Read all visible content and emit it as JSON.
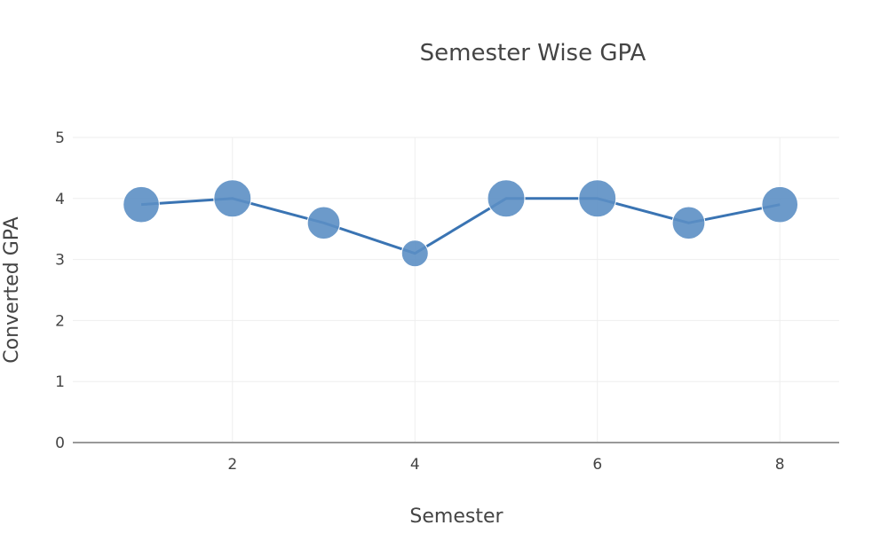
{
  "colors": {
    "series": "#3a74b3",
    "marker": "#5c8fc4",
    "grid": "#eeeeee",
    "zero_line": "#999999",
    "text": "#444444"
  },
  "chart_data": {
    "type": "scatter",
    "mode": "lines+markers",
    "title": "Semester Wise GPA",
    "xlabel": "Semester",
    "ylabel": "Converted GPA",
    "xlim": [
      0.25,
      8.65
    ],
    "ylim": [
      0,
      5
    ],
    "xticks": [
      2,
      4,
      6,
      8
    ],
    "yticks": [
      0,
      1,
      2,
      3,
      4,
      5
    ],
    "grid": true,
    "legend": "none",
    "series": [
      {
        "x": [
          1,
          2,
          3,
          4,
          5,
          6,
          7,
          8
        ],
        "y": [
          3.9,
          4.0,
          3.6,
          3.1,
          4.0,
          4.0,
          3.6,
          3.9
        ],
        "marker_size_by_value": true
      }
    ]
  }
}
